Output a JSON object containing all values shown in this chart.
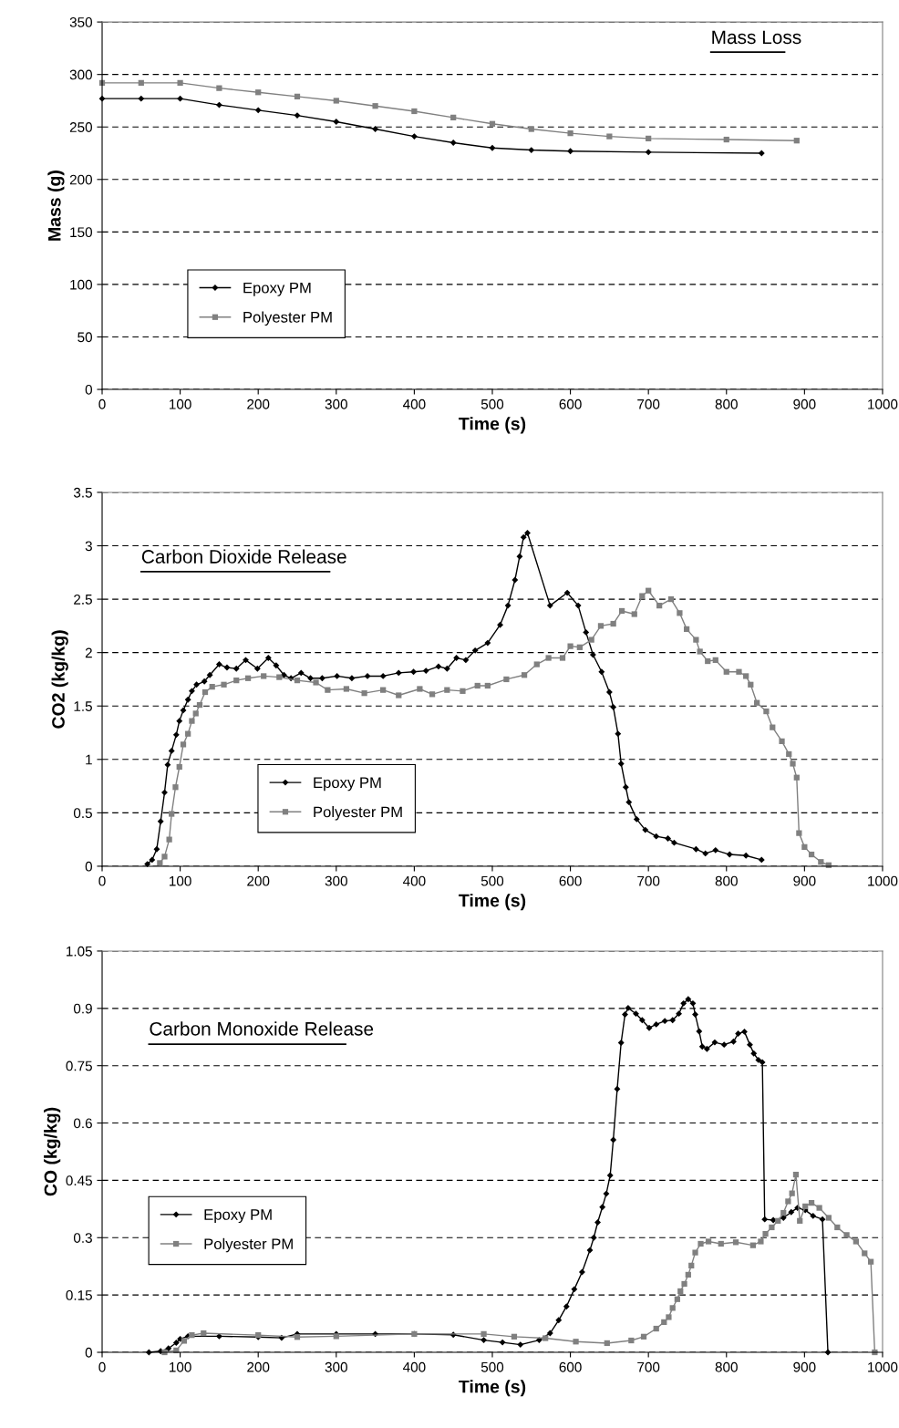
{
  "chart_data": [
    {
      "type": "line",
      "xlabel": "Time (s)",
      "ylabel": "Mass (g)",
      "annotations": [
        "Mass Loss"
      ],
      "xlim": [
        0,
        1000
      ],
      "xticks": [
        0,
        100,
        200,
        300,
        400,
        500,
        600,
        700,
        800,
        900,
        1000
      ],
      "ylim": [
        0,
        350
      ],
      "yticks": [
        0,
        50,
        100,
        150,
        200,
        250,
        300,
        350
      ],
      "grid": "y",
      "legend": "lower left",
      "series": [
        {
          "name": "Epoxy PM",
          "color": "#000000",
          "marker": "diamond",
          "x": [
            0,
            50,
            100,
            150,
            200,
            250,
            300,
            350,
            400,
            450,
            500,
            550,
            600,
            700,
            845
          ],
          "values": [
            277,
            277,
            277,
            271,
            266,
            261,
            255,
            248,
            241,
            235,
            230,
            228,
            227,
            226,
            225
          ]
        },
        {
          "name": "Polyester PM",
          "color": "#808080",
          "marker": "square",
          "x": [
            0,
            50,
            100,
            150,
            200,
            250,
            300,
            350,
            400,
            450,
            500,
            550,
            600,
            650,
            700,
            800,
            890
          ],
          "values": [
            292,
            292,
            292,
            287,
            283,
            279,
            275,
            270,
            265,
            259,
            253,
            248,
            244,
            241,
            239,
            238,
            237
          ]
        }
      ]
    },
    {
      "type": "line",
      "xlabel": "Time (s)",
      "ylabel": "CO2 (kg/kg)",
      "annotations": [
        "Carbon Dioxide Release "
      ],
      "xlim": [
        0,
        1000
      ],
      "xticks": [
        0,
        100,
        200,
        300,
        400,
        500,
        600,
        700,
        800,
        900,
        1000
      ],
      "ylim": [
        0,
        3.5
      ],
      "yticks": [
        0,
        0.5,
        1,
        1.5,
        2,
        2.5,
        3,
        3.5
      ],
      "grid": "y",
      "legend": "bottom",
      "series": [
        {
          "name": "Epoxy PM",
          "color": "#000000",
          "marker": "diamond",
          "x": [
            58,
            64,
            70,
            75,
            80,
            84,
            89,
            95,
            99,
            104,
            110,
            115,
            121,
            131,
            138,
            150,
            160,
            172,
            184,
            199,
            213,
            223,
            233,
            242,
            255,
            267,
            282,
            301,
            320,
            340,
            360,
            380,
            399,
            415,
            431,
            442,
            454,
            466,
            478,
            494,
            510,
            520,
            529,
            535,
            540,
            545,
            574,
            596,
            610,
            620,
            629,
            640,
            650,
            655,
            661,
            665,
            671,
            675,
            685,
            696,
            710,
            725,
            733,
            761,
            773,
            786,
            804,
            825,
            845
          ],
          "values": [
            0.02,
            0.06,
            0.16,
            0.42,
            0.69,
            0.95,
            1.08,
            1.23,
            1.36,
            1.46,
            1.56,
            1.64,
            1.7,
            1.73,
            1.79,
            1.89,
            1.86,
            1.85,
            1.93,
            1.85,
            1.95,
            1.88,
            1.79,
            1.76,
            1.81,
            1.76,
            1.76,
            1.78,
            1.76,
            1.78,
            1.78,
            1.81,
            1.82,
            1.83,
            1.87,
            1.85,
            1.95,
            1.93,
            2.02,
            2.09,
            2.26,
            2.44,
            2.68,
            2.9,
            3.08,
            3.12,
            2.44,
            2.56,
            2.44,
            2.19,
            1.98,
            1.82,
            1.63,
            1.49,
            1.24,
            0.96,
            0.74,
            0.6,
            0.44,
            0.34,
            0.28,
            0.26,
            0.22,
            0.16,
            0.12,
            0.15,
            0.11,
            0.1,
            0.06
          ]
        },
        {
          "name": "Polyester PM",
          "color": "#808080",
          "marker": "square",
          "x": [
            74,
            80,
            86,
            89,
            94,
            99,
            104,
            110,
            115,
            120,
            125,
            132,
            141,
            156,
            172,
            187,
            207,
            227,
            250,
            274,
            289,
            313,
            336,
            360,
            380,
            407,
            423,
            442,
            462,
            481,
            494,
            518,
            541,
            557,
            572,
            590,
            600,
            612,
            627,
            639,
            655,
            666,
            682,
            692,
            700,
            714,
            729,
            740,
            749,
            761,
            766,
            776,
            786,
            800,
            816,
            825,
            831,
            839,
            851,
            859,
            871,
            880,
            885,
            890,
            893,
            900,
            909,
            921,
            931
          ],
          "values": [
            0.03,
            0.09,
            0.25,
            0.49,
            0.74,
            0.93,
            1.14,
            1.24,
            1.36,
            1.43,
            1.51,
            1.63,
            1.68,
            1.7,
            1.74,
            1.76,
            1.78,
            1.77,
            1.74,
            1.72,
            1.65,
            1.66,
            1.62,
            1.65,
            1.6,
            1.66,
            1.61,
            1.65,
            1.64,
            1.69,
            1.69,
            1.75,
            1.79,
            1.89,
            1.95,
            1.95,
            2.06,
            2.05,
            2.12,
            2.25,
            2.27,
            2.39,
            2.36,
            2.53,
            2.58,
            2.44,
            2.5,
            2.37,
            2.22,
            2.12,
            2.01,
            1.92,
            1.93,
            1.82,
            1.82,
            1.78,
            1.7,
            1.53,
            1.45,
            1.3,
            1.17,
            1.05,
            0.96,
            0.83,
            0.31,
            0.18,
            0.11,
            0.04,
            0.01
          ]
        }
      ]
    },
    {
      "type": "line",
      "xlabel": "Time (s)",
      "ylabel": "CO (kg/kg)",
      "annotations": [
        "Carbon Monoxide Release "
      ],
      "xlim": [
        0,
        1000
      ],
      "xticks": [
        0,
        100,
        200,
        300,
        400,
        500,
        600,
        700,
        800,
        900,
        1000
      ],
      "ylim": [
        0,
        1.05
      ],
      "yticks": [
        0,
        0.15,
        0.3,
        0.45,
        0.6,
        0.75,
        0.9,
        1.05
      ],
      "grid": "y",
      "legend": "left",
      "series": [
        {
          "name": "Epoxy PM",
          "color": "#000000",
          "marker": "diamond",
          "x": [
            60,
            75,
            85,
            95,
            100,
            110,
            150,
            200,
            230,
            250,
            300,
            350,
            400,
            450,
            489,
            513,
            536,
            560,
            574,
            585,
            595,
            605,
            615,
            625,
            630,
            635,
            641,
            646,
            651,
            655,
            660,
            665,
            670,
            674,
            684,
            692,
            701,
            710,
            721,
            731,
            739,
            745,
            751,
            757,
            760,
            765,
            769,
            775,
            785,
            797,
            809,
            815,
            823,
            830,
            835,
            841,
            846,
            849,
            860,
            873,
            883,
            891,
            901,
            911,
            923,
            930
          ],
          "values": [
            0,
            0.003,
            0.01,
            0.025,
            0.035,
            0.042,
            0.042,
            0.04,
            0.038,
            0.048,
            0.048,
            0.048,
            0.048,
            0.046,
            0.032,
            0.026,
            0.02,
            0.032,
            0.05,
            0.084,
            0.12,
            0.165,
            0.21,
            0.267,
            0.3,
            0.34,
            0.38,
            0.415,
            0.463,
            0.556,
            0.689,
            0.81,
            0.884,
            0.901,
            0.886,
            0.869,
            0.849,
            0.858,
            0.867,
            0.869,
            0.886,
            0.913,
            0.924,
            0.913,
            0.884,
            0.84,
            0.8,
            0.794,
            0.811,
            0.805,
            0.813,
            0.834,
            0.839,
            0.805,
            0.782,
            0.765,
            0.759,
            0.348,
            0.346,
            0.352,
            0.367,
            0.378,
            0.372,
            0.357,
            0.348,
            0
          ]
        },
        {
          "name": "Polyester PM",
          "color": "#808080",
          "marker": "square",
          "x": [
            80,
            95,
            105,
            115,
            130,
            200,
            250,
            300,
            400,
            489,
            528,
            568,
            607,
            647,
            678,
            694,
            710,
            720,
            726,
            731,
            737,
            741,
            746,
            751,
            755,
            760,
            767,
            777,
            793,
            812,
            834,
            844,
            850,
            858,
            866,
            873,
            879,
            884,
            889,
            894,
            901,
            909,
            919,
            931,
            942,
            954,
            966,
            977,
            985,
            990
          ],
          "values": [
            0,
            0.005,
            0.03,
            0.045,
            0.05,
            0.045,
            0.04,
            0.042,
            0.048,
            0.048,
            0.041,
            0.037,
            0.028,
            0.024,
            0.031,
            0.041,
            0.062,
            0.079,
            0.092,
            0.116,
            0.139,
            0.16,
            0.179,
            0.203,
            0.227,
            0.261,
            0.284,
            0.29,
            0.284,
            0.288,
            0.28,
            0.29,
            0.31,
            0.327,
            0.344,
            0.365,
            0.395,
            0.416,
            0.465,
            0.344,
            0.382,
            0.391,
            0.378,
            0.352,
            0.327,
            0.307,
            0.29,
            0.259,
            0.237,
            0
          ]
        }
      ]
    }
  ]
}
